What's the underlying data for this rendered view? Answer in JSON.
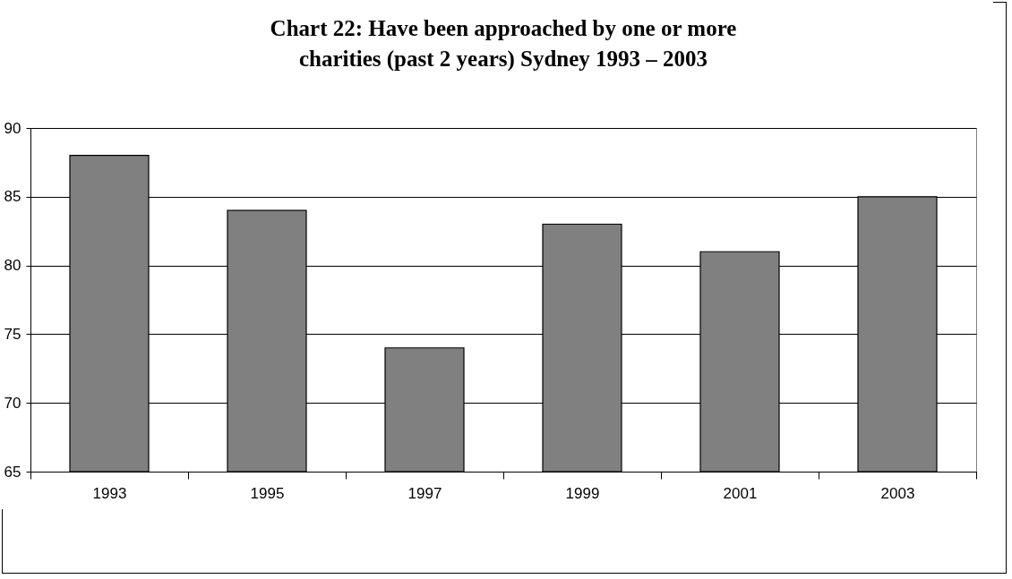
{
  "chart_data": {
    "type": "bar",
    "title": "Chart 22: Have been approached by one or more charities (past 2 years) Sydney 1993 – 2003",
    "categories": [
      "1993",
      "1995",
      "1997",
      "1999",
      "2001",
      "2003"
    ],
    "values": [
      88,
      84,
      74,
      83,
      81,
      85
    ],
    "color": "#808080",
    "ylim": [
      65,
      90
    ],
    "yticks": [
      65,
      70,
      75,
      80,
      85,
      90
    ],
    "grid": "y"
  }
}
